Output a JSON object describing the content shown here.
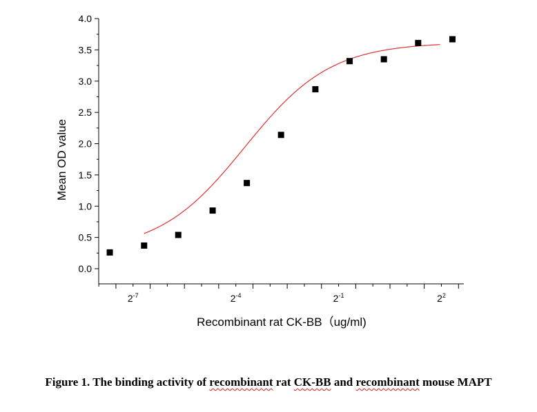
{
  "chart_data": {
    "type": "scatter",
    "title": "",
    "xlabel": "Recombinant rat CK-BB（ug/ml)",
    "ylabel": "Mean OD value",
    "x_scale": "log2",
    "xlim": [
      0.0039,
      6.3
    ],
    "ylim": [
      0.0,
      4.0
    ],
    "y_ticks": [
      "0.0",
      "0.5",
      "1.0",
      "1.5",
      "2.0",
      "2.5",
      "3.0",
      "3.5",
      "4.0"
    ],
    "x_tick_labels": [
      {
        "value": 0.0078125,
        "base": "2",
        "exp": "-7"
      },
      {
        "value": 0.0625,
        "base": "2",
        "exp": "-4"
      },
      {
        "value": 0.5,
        "base": "2",
        "exp": "-1"
      },
      {
        "value": 4,
        "base": "2",
        "exp": "2"
      }
    ],
    "grid": false,
    "series": [
      {
        "marker_color": "#000000",
        "x": [
          0.00488,
          0.00977,
          0.0195,
          0.0391,
          0.0781,
          0.156,
          0.3125,
          0.625,
          1.25,
          2.5,
          5.0
        ],
        "y": [
          0.26,
          0.37,
          0.54,
          0.93,
          1.37,
          2.14,
          2.87,
          3.32,
          3.35,
          3.61,
          3.67
        ]
      },
      {
        "x": [
          0.00977,
          3.9
        ],
        "y": [
          0.37,
          3.62
        ],
        "line_color": "#e03030"
      }
    ]
  },
  "caption": {
    "part1": "Figure 1. The binding activity of ",
    "part2": "recombinant",
    "part3": " rat ",
    "part4": "CK-BB",
    "part5": " and ",
    "part6": "recombinant",
    "part7": " mouse MAPT"
  }
}
